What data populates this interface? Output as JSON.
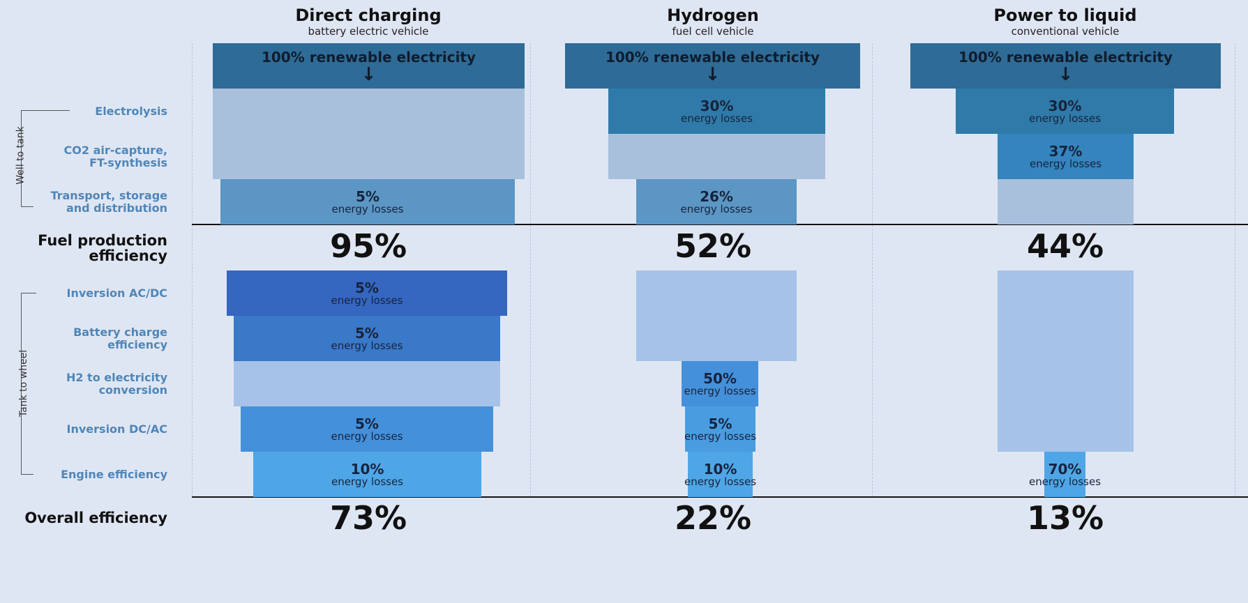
{
  "well_to_tank": {
    "label": "Well to tank",
    "stages": [
      [
        "Electrolysis"
      ],
      [
        "CO2 air-capture,",
        "FT-synthesis"
      ],
      [
        "Transport, storage",
        "and distribution"
      ]
    ]
  },
  "fuel_production": {
    "label": [
      "Fuel production",
      "efficiency"
    ]
  },
  "tank_to_wheel": {
    "label": "Tank to wheel",
    "stages": [
      [
        "Inversion AC/DC"
      ],
      [
        "Battery charge",
        "efficiency"
      ],
      [
        "H2 to electricity",
        "conversion"
      ],
      [
        "Inversion DC/AC"
      ],
      [
        "Engine efficiency"
      ]
    ]
  },
  "overall": {
    "label": "Overall efficiency"
  },
  "columns": [
    {
      "title": "Direct charging",
      "subtitle": "battery electric vehicle",
      "source": "100% renewable electricity",
      "well_to_tank": [
        null,
        null,
        {
          "value": "5%",
          "label": "energy losses"
        }
      ],
      "fuel_efficiency": "95%",
      "tank_to_wheel": [
        {
          "value": "5%",
          "label": "energy losses"
        },
        {
          "value": "5%",
          "label": "energy losses"
        },
        null,
        {
          "value": "5%",
          "label": "energy losses"
        },
        {
          "value": "10%",
          "label": "energy losses"
        }
      ],
      "overall_efficiency": "73%"
    },
    {
      "title": "Hydrogen",
      "subtitle": "fuel cell vehicle",
      "source": "100% renewable electricity",
      "well_to_tank": [
        {
          "value": "30%",
          "label": "energy losses"
        },
        null,
        {
          "value": "26%",
          "label": "energy losses"
        }
      ],
      "fuel_efficiency": "52%",
      "tank_to_wheel": [
        null,
        null,
        {
          "value": "50%",
          "label": "energy losses"
        },
        {
          "value": "5%",
          "label": "energy losses"
        },
        {
          "value": "10%",
          "label": "energy losses"
        }
      ],
      "overall_efficiency": "22%"
    },
    {
      "title": "Power to liquid",
      "subtitle": "conventional vehicle",
      "source": "100% renewable electricity",
      "well_to_tank": [
        {
          "value": "30%",
          "label": "energy losses"
        },
        {
          "value": "37%",
          "label": "energy losses"
        },
        null
      ],
      "fuel_efficiency": "44%",
      "tank_to_wheel": [
        null,
        null,
        null,
        null,
        {
          "value": "70%",
          "label": "energy losses"
        }
      ],
      "overall_efficiency": "13%"
    }
  ]
}
